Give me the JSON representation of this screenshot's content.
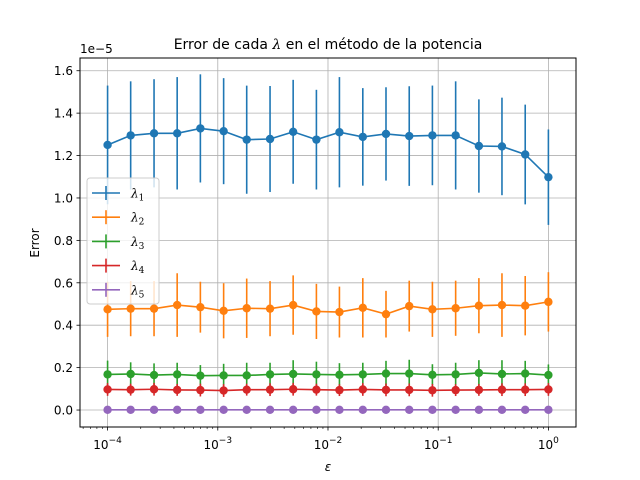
{
  "chart_data": {
    "type": "line",
    "title_prefix": "Error de cada ",
    "title_symbol": "λ",
    "title_suffix": " en el método de la potencia",
    "xlabel": "ε",
    "ylabel": "Error",
    "y_offset_text": "1e−5",
    "x_scale": "log",
    "xlim": [
      5.62e-05,
      1.78
    ],
    "ylim": [
      -0.08,
      1.66
    ],
    "grid": true,
    "legend_placement": "center-left",
    "x_ticks": [
      {
        "value": 0.0001,
        "label": "10",
        "exp": "−4"
      },
      {
        "value": 0.001,
        "label": "10",
        "exp": "−3"
      },
      {
        "value": 0.01,
        "label": "10",
        "exp": "−2"
      },
      {
        "value": 0.1,
        "label": "10",
        "exp": "−1"
      },
      {
        "value": 1,
        "label": "10",
        "exp": "0"
      }
    ],
    "y_ticks": [
      {
        "value": 0.0,
        "label": "0.0"
      },
      {
        "value": 0.2,
        "label": "0.2"
      },
      {
        "value": 0.4,
        "label": "0.4"
      },
      {
        "value": 0.6,
        "label": "0.6"
      },
      {
        "value": 0.8,
        "label": "0.8"
      },
      {
        "value": 1.0,
        "label": "1.0"
      },
      {
        "value": 1.2,
        "label": "1.2"
      },
      {
        "value": 1.4,
        "label": "1.4"
      },
      {
        "value": 1.6,
        "label": "1.6"
      }
    ],
    "x": [
      0.0001,
      0.000162,
      0.000264,
      0.000428,
      0.000695,
      0.00113,
      0.00183,
      0.00298,
      0.00483,
      0.00785,
      0.0127,
      0.0207,
      0.0336,
      0.0546,
      0.0886,
      0.144,
      0.234,
      0.379,
      0.616,
      1.0
    ],
    "series": [
      {
        "name": "λ",
        "sub": "1",
        "color": "#1f77b4",
        "values": [
          1.25,
          1.295,
          1.305,
          1.305,
          1.328,
          1.315,
          1.275,
          1.278,
          1.312,
          1.275,
          1.31,
          1.288,
          1.302,
          1.292,
          1.295,
          1.295,
          1.245,
          1.243,
          1.205,
          1.098
        ],
        "errors": [
          0.28,
          0.255,
          0.255,
          0.265,
          0.255,
          0.25,
          0.255,
          0.25,
          0.245,
          0.235,
          0.26,
          0.23,
          0.22,
          0.235,
          0.235,
          0.255,
          0.22,
          0.23,
          0.235,
          0.225
        ]
      },
      {
        "name": "λ",
        "sub": "2",
        "color": "#ff7f0e",
        "values": [
          0.475,
          0.478,
          0.478,
          0.495,
          0.485,
          0.468,
          0.48,
          0.478,
          0.495,
          0.465,
          0.462,
          0.482,
          0.452,
          0.49,
          0.475,
          0.48,
          0.492,
          0.495,
          0.492,
          0.51
        ],
        "errors": [
          0.13,
          0.13,
          0.13,
          0.15,
          0.12,
          0.13,
          0.14,
          0.13,
          0.14,
          0.13,
          0.12,
          0.14,
          0.11,
          0.12,
          0.13,
          0.13,
          0.13,
          0.15,
          0.14,
          0.14
        ]
      },
      {
        "name": "λ",
        "sub": "3",
        "color": "#2ca02c",
        "values": [
          0.168,
          0.17,
          0.165,
          0.168,
          0.162,
          0.163,
          0.163,
          0.168,
          0.17,
          0.168,
          0.166,
          0.168,
          0.172,
          0.172,
          0.166,
          0.168,
          0.175,
          0.17,
          0.172,
          0.165
        ],
        "errors": [
          0.065,
          0.055,
          0.055,
          0.055,
          0.05,
          0.055,
          0.06,
          0.055,
          0.065,
          0.06,
          0.055,
          0.055,
          0.06,
          0.065,
          0.05,
          0.055,
          0.06,
          0.065,
          0.06,
          0.05
        ]
      },
      {
        "name": "λ",
        "sub": "4",
        "color": "#d62728",
        "values": [
          0.097,
          0.096,
          0.098,
          0.095,
          0.094,
          0.092,
          0.096,
          0.096,
          0.098,
          0.096,
          0.094,
          0.097,
          0.095,
          0.095,
          0.093,
          0.094,
          0.095,
          0.096,
          0.096,
          0.097
        ],
        "errors": [
          0.03,
          0.028,
          0.03,
          0.028,
          0.03,
          0.03,
          0.028,
          0.03,
          0.03,
          0.028,
          0.028,
          0.03,
          0.03,
          0.03,
          0.03,
          0.028,
          0.028,
          0.03,
          0.03,
          0.03
        ]
      },
      {
        "name": "λ",
        "sub": "5",
        "color": "#9467bd",
        "values": [
          0.001,
          0.001,
          0.001,
          0.001,
          0.001,
          0.001,
          0.001,
          0.001,
          0.001,
          0.001,
          0.001,
          0.001,
          0.001,
          0.001,
          0.001,
          0.001,
          0.001,
          0.001,
          0.001,
          0.001
        ],
        "errors": [
          0.003,
          0.003,
          0.003,
          0.003,
          0.003,
          0.003,
          0.003,
          0.003,
          0.003,
          0.003,
          0.003,
          0.003,
          0.003,
          0.003,
          0.003,
          0.003,
          0.003,
          0.003,
          0.003,
          0.003
        ]
      }
    ]
  }
}
